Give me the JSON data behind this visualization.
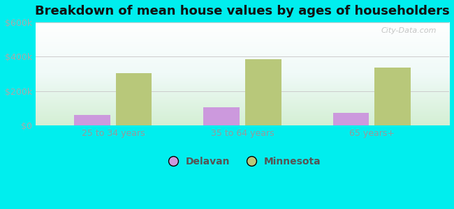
{
  "title": "Breakdown of mean house values by ages of householders",
  "categories": [
    "25 to 34 years",
    "35 to 64 years",
    "65 years+"
  ],
  "delavan_values": [
    60000,
    105000,
    75000
  ],
  "minnesota_values": [
    305000,
    385000,
    335000
  ],
  "delavan_color": "#cc99dd",
  "minnesota_color": "#b8c87a",
  "ylim": [
    0,
    600000
  ],
  "yticks": [
    0,
    200000,
    400000,
    600000
  ],
  "ytick_labels": [
    "$0",
    "$200k",
    "$400k",
    "$600k"
  ],
  "background_color": "#00eeee",
  "legend_labels": [
    "Delavan",
    "Minnesota"
  ],
  "bar_width": 0.28,
  "title_fontsize": 13,
  "tick_fontsize": 9,
  "legend_fontsize": 10,
  "watermark": "City-Data.com",
  "grid_color": "#cccccc",
  "tick_color": "#aaaaaa",
  "xtick_color": "#999999"
}
